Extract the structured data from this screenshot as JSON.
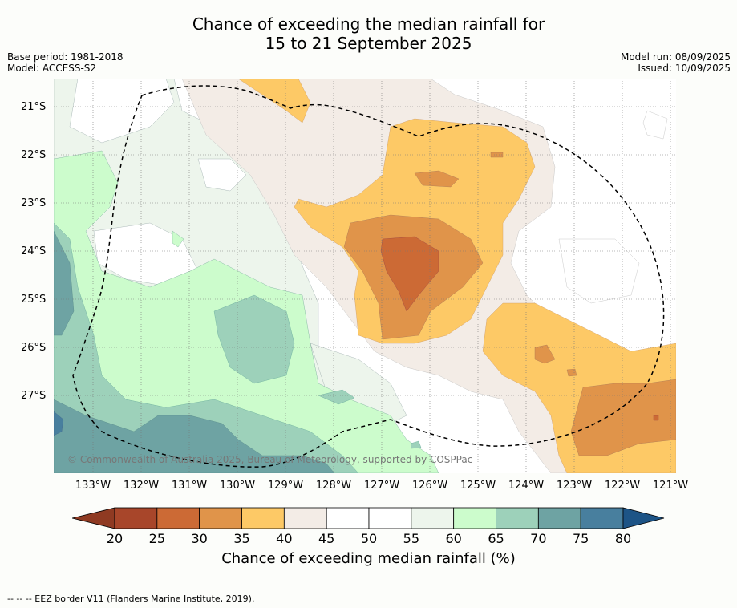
{
  "title_line1": "Chance of exceeding the median rainfall for",
  "title_line2": "15 to 21 September 2025",
  "base_period": "Base period: 1981-2018",
  "model": "Model: ACCESS-S2",
  "model_run": "Model run: 08/09/2025",
  "issued": "Issued: 10/09/2025",
  "copyright": "© Commonwealth of Australia 2025, Bureau of Meteorology, supported by COSPPac",
  "lat_labels": [
    "21°S",
    "22°S",
    "23°S",
    "24°S",
    "25°S",
    "26°S",
    "27°S"
  ],
  "lon_labels": [
    "133°W",
    "132°W",
    "131°W",
    "130°W",
    "129°W",
    "128°W",
    "127°W",
    "126°W",
    "125°W",
    "124°W",
    "123°W",
    "122°W",
    "121°W"
  ],
  "colorbar": {
    "title": "Chance of exceeding median rainfall (%)",
    "ticks": [
      "20",
      "25",
      "30",
      "35",
      "40",
      "45",
      "50",
      "55",
      "60",
      "65",
      "70",
      "75",
      "80"
    ],
    "colors": [
      "#a8462a",
      "#cc6a35",
      "#e0944a",
      "#fdc966",
      "#f3ece6",
      "#ffffff",
      "#ffffff",
      "#edf5ec",
      "#ccfccc",
      "#9dd1ba",
      "#6ea3a3",
      "#487f9e"
    ],
    "under_color": "#8f3a22",
    "over_color": "#1d5486"
  },
  "footer": "--  --  -- EEZ border V11 (Flanders Marine Institute, 2019).",
  "map": {
    "projection": "lat-lon",
    "lat_range": [
      "20.4°S",
      "28.6°S"
    ],
    "lon_range": [
      "133.9°W",
      "120.9°W"
    ],
    "features": [
      "rainfall-probability-contours",
      "eez-border-dashed",
      "lat-lon-gridlines"
    ]
  }
}
